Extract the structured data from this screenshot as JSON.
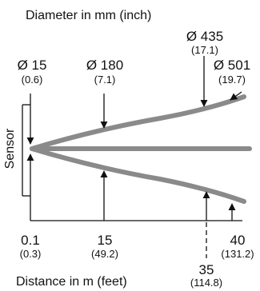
{
  "title": "Diameter in mm (inch)",
  "x_axis_label": "Distance in m (feet)",
  "sensor_label": "Sensor",
  "diameters": [
    {
      "mm": "Ø 15",
      "inch": "(0.6)"
    },
    {
      "mm": "Ø 180",
      "inch": "(7.1)"
    },
    {
      "mm": "Ø 435",
      "inch": "(17.1)"
    },
    {
      "mm": "Ø 501",
      "inch": "(19.7)"
    }
  ],
  "distances": [
    {
      "m": "0.1",
      "feet": "(0.3)"
    },
    {
      "m": "15",
      "feet": "(49.2)"
    },
    {
      "m": "35",
      "feet": "(114.8)"
    },
    {
      "m": "40",
      "feet": "(131.2)"
    }
  ],
  "colors": {
    "beam": "#8a8a8a",
    "line": "#111111"
  }
}
